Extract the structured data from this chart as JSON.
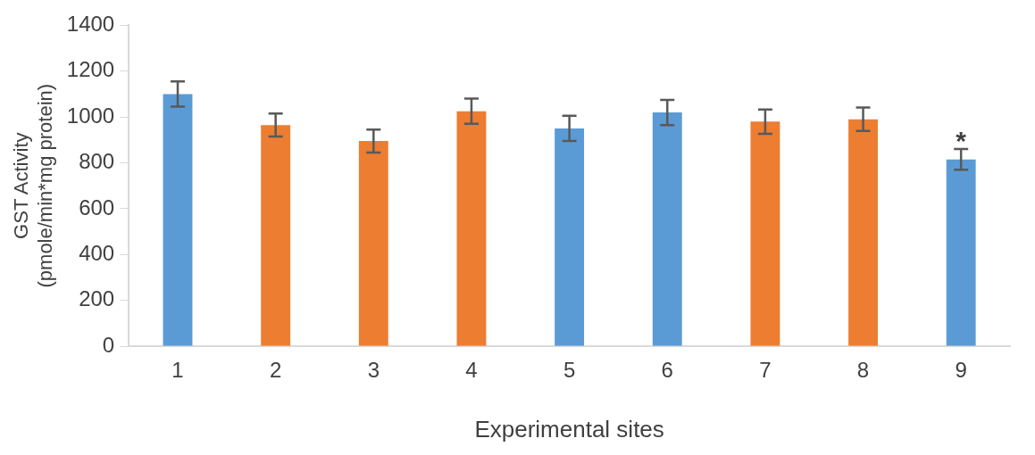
{
  "chart_data": {
    "type": "bar",
    "xlabel": "Experimental sites",
    "ylabel": "GST Activity\n(pmole/min*mg protein)",
    "categories": [
      "1",
      "2",
      "3",
      "4",
      "5",
      "6",
      "7",
      "8",
      "9"
    ],
    "values": [
      1100,
      965,
      895,
      1025,
      950,
      1020,
      980,
      990,
      815
    ],
    "colors": [
      "#5b9bd5",
      "#ed7d31",
      "#ed7d31",
      "#ed7d31",
      "#5b9bd5",
      "#5b9bd5",
      "#ed7d31",
      "#ed7d31",
      "#5b9bd5"
    ],
    "errors": [
      55,
      50,
      50,
      55,
      55,
      55,
      53,
      51,
      45
    ],
    "ylim": [
      0,
      1400
    ],
    "yticks": [
      0,
      200,
      400,
      600,
      800,
      1000,
      1200,
      1400
    ],
    "grid": false,
    "annotations": [
      {
        "text": "*",
        "x": "9",
        "y": 860
      }
    ]
  }
}
